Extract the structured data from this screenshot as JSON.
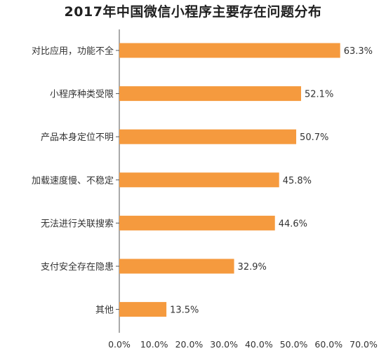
{
  "chart_data": {
    "type": "bar",
    "orientation": "horizontal",
    "title": "2017年中国微信小程序主要存在问题分布",
    "categories": [
      "对比应用，功能不全",
      "小程序种类受限",
      "产品本身定位不明",
      "加载速度慢、不稳定",
      "无法进行关联搜索",
      "支付安全存在隐患",
      "其他"
    ],
    "values": [
      63.3,
      52.1,
      50.7,
      45.8,
      44.6,
      32.9,
      13.5
    ],
    "value_labels": [
      "63.3%",
      "52.1%",
      "50.7%",
      "45.8%",
      "44.6%",
      "32.9%",
      "13.5%"
    ],
    "xlim": [
      0,
      70
    ],
    "x_ticks": [
      0,
      10,
      20,
      30,
      40,
      50,
      60,
      70
    ],
    "x_tick_labels": [
      "0.0%",
      "10.0%",
      "20.0%",
      "30.0%",
      "40.0%",
      "50.0%",
      "60.0%",
      "70.0%"
    ],
    "grid": false,
    "bar_color": "#f59a3e",
    "axis_color": "#555555"
  }
}
